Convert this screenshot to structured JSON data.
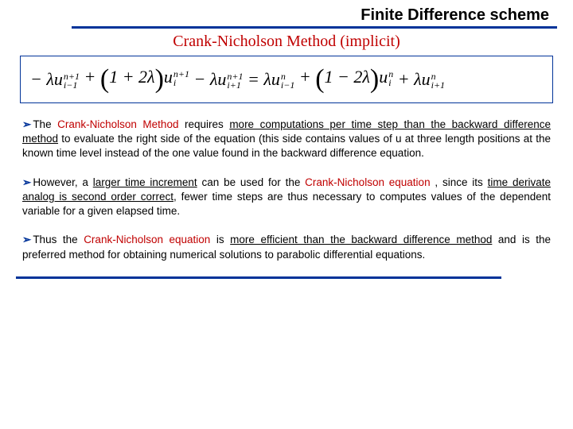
{
  "header": {
    "title": "Finite Difference scheme"
  },
  "subtitle": "Crank-Nicholson Method (implicit)",
  "equation": {
    "lhs": {
      "t1": {
        "coef_sign": "−",
        "var": "λu",
        "sub": "i−1",
        "sup": "n+1"
      },
      "t2": {
        "open": "(",
        "inner": "1 + 2λ",
        "close": ")",
        "var": "u",
        "sub": "i",
        "sup": "n+1"
      },
      "t3": {
        "coef_sign": "−",
        "var": "λu",
        "sub": "i+1",
        "sup": "n+1"
      }
    },
    "eq": "=",
    "rhs": {
      "t1": {
        "var": "λu",
        "sub": "i−1",
        "sup": "n"
      },
      "t2": {
        "open": "(",
        "inner": "1 − 2λ",
        "close": ")",
        "var": "u",
        "sub": "i",
        "sup": "n"
      },
      "t3": {
        "var": "λu",
        "sub": "i+1",
        "sup": "n"
      }
    }
  },
  "paragraphs": {
    "p1": {
      "a": "The ",
      "cn": "Crank-Nicholson Method",
      "b": " requires ",
      "u1": "more computations per time step than the backward difference method",
      "c": " to evaluate the right side of the equation (this side contains values of u at three length positions at the known time level instead of the one value found in the backward difference equation."
    },
    "p2": {
      "a": "However, a ",
      "u1": "larger time increment",
      "b": " can be used for the ",
      "cn": "Crank-Nicholson equation",
      "c": " , since its ",
      "u2": "time derivate analog is second order correct",
      "d": ", fewer time steps are thus necessary to computes values of the dependent variable for a given elapsed time."
    },
    "p3": {
      "a": "Thus the ",
      "cn": "Crank-Nicholson equation",
      "b": " is ",
      "u1": "more efficient than the backward difference method",
      "c": " and is the preferred method for obtaining numerical solutions to parabolic differential equations."
    }
  },
  "bullet_glyph": "➢",
  "colors": {
    "rule": "#003399",
    "accent": "#c00000",
    "text": "#000000",
    "bg": "#ffffff"
  }
}
